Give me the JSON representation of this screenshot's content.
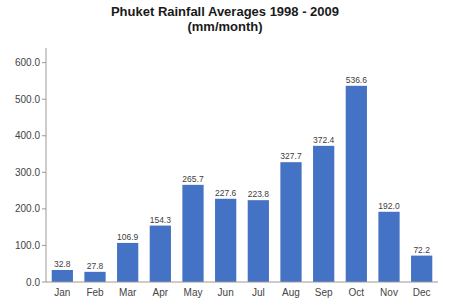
{
  "chart_data": {
    "type": "bar",
    "title": "Phuket Rainfall Averages 1998 - 2009\n(mm/month)",
    "categories": [
      "Jan",
      "Feb",
      "Mar",
      "Apr",
      "May",
      "Jun",
      "Jul",
      "Aug",
      "Sep",
      "Oct",
      "Nov",
      "Dec"
    ],
    "values": [
      32.8,
      27.8,
      106.9,
      154.3,
      265.7,
      227.6,
      223.8,
      327.7,
      372.4,
      536.6,
      192.0,
      72.2
    ],
    "value_labels": [
      "32.8",
      "27.8",
      "106.9",
      "154.3",
      "265.7",
      "227.6",
      "223.8",
      "327.7",
      "372.4",
      "536.6",
      "192.0",
      "72.2"
    ],
    "data_labels": true,
    "color": "#4472C4",
    "ylim": [
      0,
      640
    ],
    "yticks": [
      {
        "value": 0.0,
        "label": "0.0"
      },
      {
        "value": 100.0,
        "label": "100.0"
      },
      {
        "value": 200.0,
        "label": "200.0"
      },
      {
        "value": 300.0,
        "label": "300.0"
      },
      {
        "value": 400.0,
        "label": "400.0"
      },
      {
        "value": 500.0,
        "label": "500.0"
      },
      {
        "value": 600.0,
        "label": "600.0"
      }
    ],
    "grid": false
  }
}
